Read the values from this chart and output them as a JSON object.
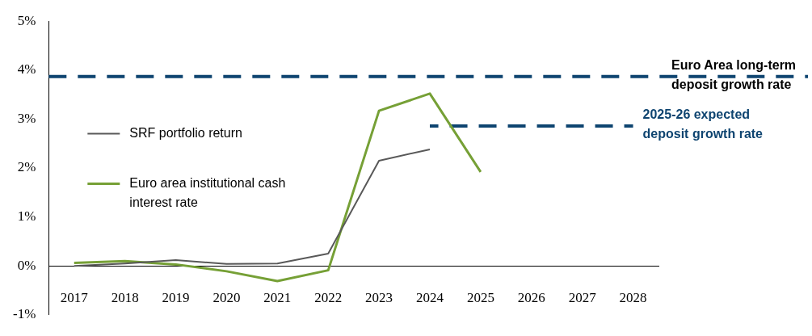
{
  "chart_data": {
    "type": "line",
    "categories": [
      "2017",
      "2018",
      "2019",
      "2020",
      "2021",
      "2022",
      "2023",
      "2024",
      "2025",
      "2026",
      "2027",
      "2028"
    ],
    "series": [
      {
        "name": "SRF portfolio return",
        "color": "#595959",
        "values": [
          0.0,
          0.05,
          0.12,
          0.04,
          0.05,
          0.25,
          2.15,
          2.38,
          null,
          null,
          null,
          null
        ]
      },
      {
        "name": "Euro area institutional cash interest rate",
        "color": "#76a036",
        "values": [
          0.06,
          0.1,
          0.03,
          -0.11,
          -0.31,
          -0.09,
          3.17,
          3.52,
          1.92,
          null,
          null,
          null
        ]
      },
      {
        "name": "2025-26 expected deposit growth rate",
        "color": "#0e4470",
        "line_style": "dashed",
        "values": [
          null,
          null,
          null,
          null,
          null,
          null,
          null,
          2.86,
          2.86,
          2.86,
          2.86,
          2.86
        ]
      }
    ],
    "ylim": [
      -1,
      5
    ],
    "yticks": [
      {
        "value": -1,
        "label": "-1%"
      },
      {
        "value": 0,
        "label": "0%"
      },
      {
        "value": 1,
        "label": "1%"
      },
      {
        "value": 2,
        "label": "2%"
      },
      {
        "value": 3,
        "label": "3%"
      },
      {
        "value": 4,
        "label": "4%"
      },
      {
        "value": 5,
        "label": "5%"
      }
    ],
    "ref_lines": [
      {
        "axis": "y",
        "value": 3.87,
        "label": "Euro Area long-term deposit growth rate",
        "color": "#0e4470",
        "line_style": "dashed"
      }
    ],
    "legend": "left",
    "grid": false,
    "marker": "none"
  }
}
